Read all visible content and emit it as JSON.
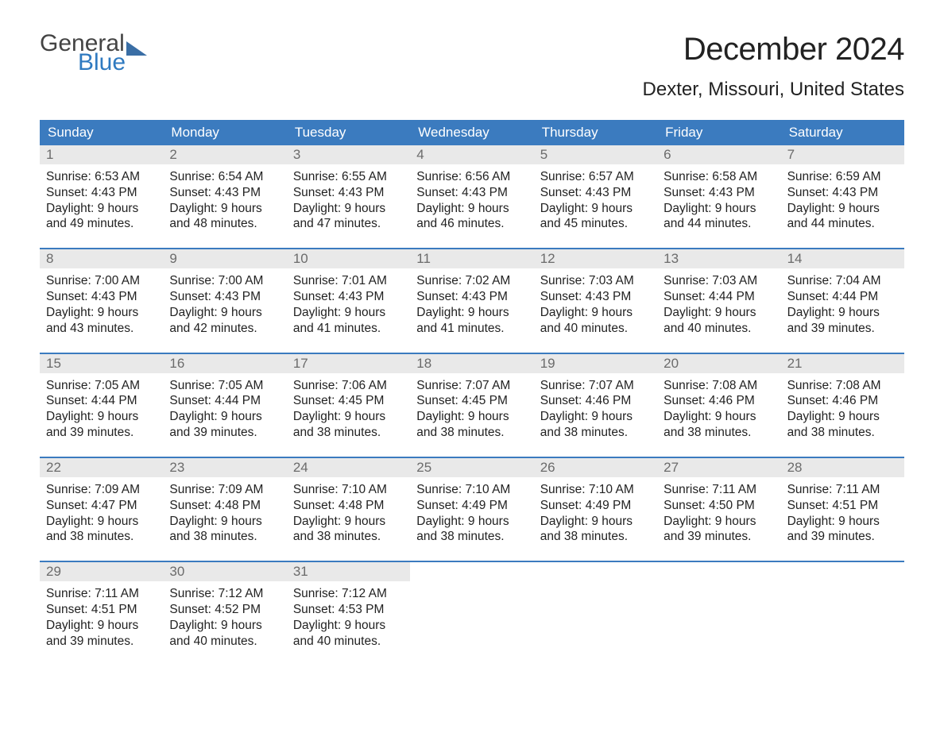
{
  "logo": {
    "word1": "General",
    "word2": "Blue"
  },
  "title": "December 2024",
  "location": "Dexter, Missouri, United States",
  "colors": {
    "header_bg": "#3b7bbf",
    "header_text": "#ffffff",
    "daynum_bg": "#e9e9e9",
    "daynum_text": "#6b6b6b",
    "body_text": "#222222",
    "page_bg": "#ffffff",
    "logo_blue": "#2f7ac0",
    "logo_gray": "#444444"
  },
  "typography": {
    "title_fontsize": 40,
    "location_fontsize": 24,
    "dayhead_fontsize": 17,
    "daynum_fontsize": 17,
    "body_fontsize": 15.5,
    "font_family": "Arial"
  },
  "layout": {
    "columns": 7,
    "weeks": 5
  },
  "day_names": [
    "Sunday",
    "Monday",
    "Tuesday",
    "Wednesday",
    "Thursday",
    "Friday",
    "Saturday"
  ],
  "days": [
    {
      "n": 1,
      "sunrise": "6:53 AM",
      "sunset": "4:43 PM",
      "dl_h": 9,
      "dl_m": 49
    },
    {
      "n": 2,
      "sunrise": "6:54 AM",
      "sunset": "4:43 PM",
      "dl_h": 9,
      "dl_m": 48
    },
    {
      "n": 3,
      "sunrise": "6:55 AM",
      "sunset": "4:43 PM",
      "dl_h": 9,
      "dl_m": 47
    },
    {
      "n": 4,
      "sunrise": "6:56 AM",
      "sunset": "4:43 PM",
      "dl_h": 9,
      "dl_m": 46
    },
    {
      "n": 5,
      "sunrise": "6:57 AM",
      "sunset": "4:43 PM",
      "dl_h": 9,
      "dl_m": 45
    },
    {
      "n": 6,
      "sunrise": "6:58 AM",
      "sunset": "4:43 PM",
      "dl_h": 9,
      "dl_m": 44
    },
    {
      "n": 7,
      "sunrise": "6:59 AM",
      "sunset": "4:43 PM",
      "dl_h": 9,
      "dl_m": 44
    },
    {
      "n": 8,
      "sunrise": "7:00 AM",
      "sunset": "4:43 PM",
      "dl_h": 9,
      "dl_m": 43
    },
    {
      "n": 9,
      "sunrise": "7:00 AM",
      "sunset": "4:43 PM",
      "dl_h": 9,
      "dl_m": 42
    },
    {
      "n": 10,
      "sunrise": "7:01 AM",
      "sunset": "4:43 PM",
      "dl_h": 9,
      "dl_m": 41
    },
    {
      "n": 11,
      "sunrise": "7:02 AM",
      "sunset": "4:43 PM",
      "dl_h": 9,
      "dl_m": 41
    },
    {
      "n": 12,
      "sunrise": "7:03 AM",
      "sunset": "4:43 PM",
      "dl_h": 9,
      "dl_m": 40
    },
    {
      "n": 13,
      "sunrise": "7:03 AM",
      "sunset": "4:44 PM",
      "dl_h": 9,
      "dl_m": 40
    },
    {
      "n": 14,
      "sunrise": "7:04 AM",
      "sunset": "4:44 PM",
      "dl_h": 9,
      "dl_m": 39
    },
    {
      "n": 15,
      "sunrise": "7:05 AM",
      "sunset": "4:44 PM",
      "dl_h": 9,
      "dl_m": 39
    },
    {
      "n": 16,
      "sunrise": "7:05 AM",
      "sunset": "4:44 PM",
      "dl_h": 9,
      "dl_m": 39
    },
    {
      "n": 17,
      "sunrise": "7:06 AM",
      "sunset": "4:45 PM",
      "dl_h": 9,
      "dl_m": 38
    },
    {
      "n": 18,
      "sunrise": "7:07 AM",
      "sunset": "4:45 PM",
      "dl_h": 9,
      "dl_m": 38
    },
    {
      "n": 19,
      "sunrise": "7:07 AM",
      "sunset": "4:46 PM",
      "dl_h": 9,
      "dl_m": 38
    },
    {
      "n": 20,
      "sunrise": "7:08 AM",
      "sunset": "4:46 PM",
      "dl_h": 9,
      "dl_m": 38
    },
    {
      "n": 21,
      "sunrise": "7:08 AM",
      "sunset": "4:46 PM",
      "dl_h": 9,
      "dl_m": 38
    },
    {
      "n": 22,
      "sunrise": "7:09 AM",
      "sunset": "4:47 PM",
      "dl_h": 9,
      "dl_m": 38
    },
    {
      "n": 23,
      "sunrise": "7:09 AM",
      "sunset": "4:48 PM",
      "dl_h": 9,
      "dl_m": 38
    },
    {
      "n": 24,
      "sunrise": "7:10 AM",
      "sunset": "4:48 PM",
      "dl_h": 9,
      "dl_m": 38
    },
    {
      "n": 25,
      "sunrise": "7:10 AM",
      "sunset": "4:49 PM",
      "dl_h": 9,
      "dl_m": 38
    },
    {
      "n": 26,
      "sunrise": "7:10 AM",
      "sunset": "4:49 PM",
      "dl_h": 9,
      "dl_m": 38
    },
    {
      "n": 27,
      "sunrise": "7:11 AM",
      "sunset": "4:50 PM",
      "dl_h": 9,
      "dl_m": 39
    },
    {
      "n": 28,
      "sunrise": "7:11 AM",
      "sunset": "4:51 PM",
      "dl_h": 9,
      "dl_m": 39
    },
    {
      "n": 29,
      "sunrise": "7:11 AM",
      "sunset": "4:51 PM",
      "dl_h": 9,
      "dl_m": 39
    },
    {
      "n": 30,
      "sunrise": "7:12 AM",
      "sunset": "4:52 PM",
      "dl_h": 9,
      "dl_m": 40
    },
    {
      "n": 31,
      "sunrise": "7:12 AM",
      "sunset": "4:53 PM",
      "dl_h": 9,
      "dl_m": 40
    }
  ],
  "labels": {
    "sunrise": "Sunrise:",
    "sunset": "Sunset:",
    "daylight_fmt": "Daylight: {h} hours and {m} minutes."
  }
}
